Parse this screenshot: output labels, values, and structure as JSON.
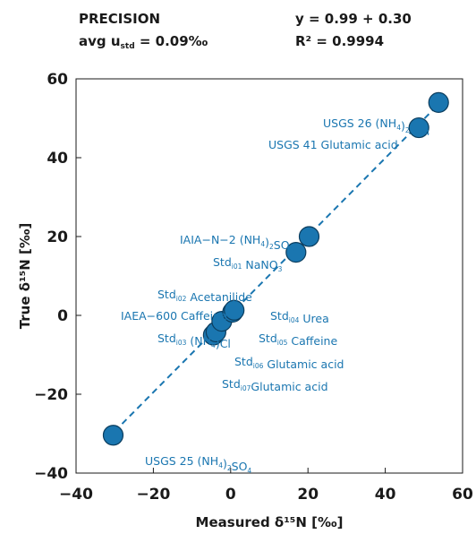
{
  "header": {
    "precision_label": "PRECISION",
    "avg_prefix": "avg u",
    "avg_sub": "std",
    "avg_suffix": " = 0.09‰",
    "equation": "y = 0.99 + 0.30",
    "r2": "R² = 0.9994"
  },
  "chart_data": {
    "type": "scatter",
    "xlabel": "Measured δ¹⁵N [‰]",
    "ylabel": "True δ¹⁵N [‰]",
    "xlim": [
      -40,
      60
    ],
    "ylim": [
      -40,
      60
    ],
    "xticks": [
      "−40",
      "−20",
      "0",
      "20",
      "40",
      "60"
    ],
    "yticks": [
      "60",
      "40",
      "20",
      "0",
      "−20",
      "−40"
    ],
    "xtick_values": [
      -40,
      -20,
      0,
      20,
      40,
      60
    ],
    "ytick_values": [
      60,
      40,
      20,
      0,
      -20,
      -40
    ],
    "grid": false,
    "point_color": "#1a76b0",
    "fit": {
      "slope": 0.99,
      "intercept": 0.3,
      "r2": 0.9994
    },
    "points": [
      {
        "x": -30.4,
        "y": -30.4
      },
      {
        "x": -4.5,
        "y": -5.0
      },
      {
        "x": -3.8,
        "y": -4.2
      },
      {
        "x": -2.3,
        "y": -1.5
      },
      {
        "x": 0.5,
        "y": 0.8
      },
      {
        "x": 0.9,
        "y": 1.3
      },
      {
        "x": 16.9,
        "y": 16.0
      },
      {
        "x": 20.3,
        "y": 20.0
      },
      {
        "x": 48.7,
        "y": 47.6
      },
      {
        "x": 53.8,
        "y": 54.0
      }
    ],
    "labels": [
      {
        "parts": [
          [
            "USGS 26 (NH",
            ""
          ],
          [
            "4",
            "sub"
          ],
          [
            ")",
            ""
          ],
          [
            "2",
            "sub"
          ],
          [
            "SO",
            ""
          ],
          [
            "4",
            "sub"
          ]
        ]
      },
      {
        "parts": [
          [
            "USGS 41 Glutamic acid",
            ""
          ]
        ]
      },
      {
        "parts": [
          [
            "IAIA−N−2 (NH",
            ""
          ],
          [
            "4",
            "sub"
          ],
          [
            ")",
            ""
          ],
          [
            "2",
            "sub"
          ],
          [
            "SO",
            ""
          ],
          [
            "4",
            "sub"
          ]
        ]
      },
      {
        "parts": [
          [
            "Std",
            ""
          ],
          [
            "i01",
            "sub"
          ],
          [
            " NaNO",
            ""
          ],
          [
            "3",
            "sub"
          ]
        ]
      },
      {
        "parts": [
          [
            "Std",
            ""
          ],
          [
            "i02",
            "sub"
          ],
          [
            " Acetanilide",
            ""
          ]
        ]
      },
      {
        "parts": [
          [
            "IAEA−600 Caffeine",
            ""
          ]
        ]
      },
      {
        "parts": [
          [
            "Std",
            ""
          ],
          [
            "i03",
            "sub"
          ],
          [
            " (NH",
            ""
          ],
          [
            "4",
            "sub"
          ],
          [
            ")Cl",
            ""
          ]
        ]
      },
      {
        "parts": [
          [
            "Std",
            ""
          ],
          [
            "i04",
            "sub"
          ],
          [
            " Urea",
            ""
          ]
        ]
      },
      {
        "parts": [
          [
            "Std",
            ""
          ],
          [
            "i05",
            "sub"
          ],
          [
            " Caffeine",
            ""
          ]
        ]
      },
      {
        "parts": [
          [
            "Std",
            ""
          ],
          [
            "i06",
            "sub"
          ],
          [
            " Glutamic acid",
            ""
          ]
        ]
      },
      {
        "parts": [
          [
            "Std",
            ""
          ],
          [
            "i07",
            "sub"
          ],
          [
            "Glutamic acid",
            ""
          ]
        ]
      },
      {
        "parts": [
          [
            "USGS 25 (NH",
            ""
          ],
          [
            "4",
            "sub"
          ],
          [
            ")",
            ""
          ],
          [
            "2",
            "sub"
          ],
          [
            "SO",
            ""
          ],
          [
            "4",
            "sub"
          ]
        ]
      }
    ]
  }
}
